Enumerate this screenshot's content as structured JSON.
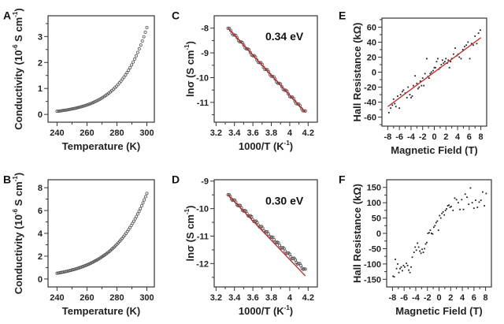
{
  "chart_data": [
    {
      "panel": "A",
      "type": "scatter",
      "xlabel": "Temperature (K)",
      "ylabel": "Conductivity (10^-6 S cm^-1)",
      "ylabel_parts": {
        "main": "Conductivity (10",
        "sup1": "-6",
        "mid": " S cm",
        "sup2": "-1",
        "end": ")"
      },
      "xlim": [
        234,
        305
      ],
      "ylim": [
        -0.3,
        3.8
      ],
      "xticks": [
        240,
        260,
        280,
        300
      ],
      "yticks": [
        0,
        1,
        2,
        3
      ],
      "marker": "open-circle",
      "curve": {
        "model": "exponential",
        "x_start": 240,
        "x_end": 300,
        "y_start": 0.12,
        "y_end": 3.35,
        "n_points": 60
      }
    },
    {
      "panel": "B",
      "type": "scatter",
      "xlabel": "Temperature (K)",
      "ylabel": "Conductivity (10^-6 S cm^-1)",
      "ylabel_parts": {
        "main": "Conductivity (10",
        "sup1": "-6",
        "mid": " S cm",
        "sup2": "-1",
        "end": ")"
      },
      "xlim": [
        234,
        305
      ],
      "ylim": [
        -0.7,
        8.7
      ],
      "xticks": [
        240,
        260,
        280,
        300
      ],
      "yticks": [
        0,
        2,
        4,
        6,
        8
      ],
      "marker": "open-circle",
      "curve": {
        "model": "exponential",
        "x_start": 240,
        "x_end": 300,
        "y_start": 0.5,
        "y_end": 7.5,
        "n_points": 70
      }
    },
    {
      "panel": "C",
      "type": "scatter",
      "xlabel": "1000/T (K^-1)",
      "ylabel": "lnσ (S cm^-1)",
      "xlim": [
        3.18,
        4.3
      ],
      "ylim": [
        -11.8,
        -7.5
      ],
      "xticks": [
        3.2,
        3.4,
        3.6,
        3.8,
        4.0,
        4.2
      ],
      "yticks": [
        -8,
        -9,
        -10,
        -11
      ],
      "annotation": "0.34 eV",
      "data_range": {
        "x_start": 3.33,
        "x_end": 4.17,
        "y_start": -8.0,
        "y_end": -11.4,
        "n_points": 60
      },
      "fit_line": {
        "x": [
          3.33,
          4.17
        ],
        "y": [
          -8.0,
          -11.4
        ],
        "color": "#cc2222"
      }
    },
    {
      "panel": "D",
      "type": "scatter",
      "xlabel": "1000/T (K^-1)",
      "ylabel": "lnσ (S cm^-1)",
      "xlim": [
        3.18,
        4.3
      ],
      "ylim": [
        -12.85,
        -8.95
      ],
      "xticks": [
        3.2,
        3.4,
        3.6,
        3.8,
        4.0,
        4.2
      ],
      "yticks": [
        -9,
        -10,
        -11,
        -12
      ],
      "annotation": "0.30 eV",
      "data_range": {
        "x_start": 3.33,
        "x_end": 4.17,
        "y_start": -9.5,
        "y_end": -12.25,
        "n_points": 70
      },
      "fit_line": {
        "x": [
          3.33,
          4.17
        ],
        "y": [
          -9.5,
          -12.45
        ],
        "color": "#cc2222"
      }
    },
    {
      "panel": "E",
      "type": "scatter",
      "xlabel": "Magnetic Field (T)",
      "ylabel": "Hall Resistance (kΩ)",
      "xlim": [
        -9,
        9
      ],
      "ylim": [
        -72,
        72
      ],
      "xticks": [
        -8,
        -6,
        -4,
        -2,
        0,
        2,
        4,
        6,
        8
      ],
      "yticks": [
        60,
        40,
        20,
        0,
        -20,
        -40,
        -60
      ],
      "fit_line": {
        "x": [
          -8,
          8
        ],
        "y": [
          -46,
          46
        ],
        "color": "#cc2222"
      },
      "x": [
        -7.8,
        -7.5,
        -7.2,
        -7.0,
        -6.8,
        -6.6,
        -6.3,
        -6.0,
        -5.8,
        -5.5,
        -5.3,
        -5.0,
        -4.7,
        -4.5,
        -4.2,
        -4.0,
        -3.8,
        -3.6,
        -3.3,
        -3.0,
        -2.8,
        -2.6,
        -2.4,
        -2.2,
        -2.0,
        -1.8,
        -1.6,
        -1.3,
        -1.1,
        -0.9,
        -0.7,
        -0.5,
        -0.2,
        0.0,
        0.2,
        0.4,
        0.6,
        0.8,
        1.0,
        1.2,
        1.4,
        1.6,
        1.8,
        2.0,
        2.2,
        2.4,
        2.6,
        2.8,
        3.0,
        3.3,
        3.6,
        3.9,
        4.1,
        4.3,
        4.6,
        4.9,
        5.2,
        5.5,
        5.8,
        6.1,
        6.4,
        6.7,
        7.0,
        7.3,
        7.6,
        7.9
      ],
      "y": [
        -54,
        -48,
        -44,
        -36,
        -42,
        -46,
        -32,
        -48,
        -30,
        -26,
        -24,
        -28,
        -34,
        -20,
        -30,
        -34,
        -32,
        -18,
        -5,
        -15,
        -22,
        -20,
        -12,
        -18,
        -8,
        -18,
        -2,
        18,
        -6,
        -8,
        -2,
        0,
        2,
        6,
        6,
        14,
        18,
        4,
        6,
        10,
        16,
        12,
        14,
        18,
        12,
        16,
        6,
        14,
        18,
        24,
        32,
        22,
        24,
        20,
        18,
        30,
        34,
        36,
        40,
        18,
        38,
        36,
        48,
        38,
        52,
        56
      ],
      "marker": "small-dot"
    },
    {
      "panel": "F",
      "type": "scatter",
      "xlabel": "Magnetic Field (T)",
      "ylabel": "Hall Resistance (kΩ)",
      "xlim": [
        -9,
        9
      ],
      "ylim": [
        -175,
        175
      ],
      "xticks": [
        -8,
        -6,
        -4,
        -2,
        0,
        2,
        4,
        6,
        8
      ],
      "yticks": [
        150,
        100,
        50,
        0,
        -50,
        -100,
        -150
      ],
      "x": [
        -7.9,
        -7.7,
        -7.5,
        -7.3,
        -7.1,
        -6.9,
        -6.7,
        -6.5,
        -6.3,
        -6.1,
        -5.9,
        -5.6,
        -5.4,
        -5.2,
        -5.0,
        -4.8,
        -4.6,
        -4.3,
        -4.1,
        -3.9,
        -3.7,
        -3.5,
        -3.3,
        -3.1,
        -2.9,
        -2.7,
        -2.5,
        -2.3,
        -2.1,
        -1.9,
        -1.7,
        -1.5,
        -1.3,
        -1.1,
        -0.9,
        -0.7,
        -0.5,
        -0.3,
        -0.1,
        0.1,
        0.3,
        0.5,
        0.7,
        0.9,
        1.1,
        1.3,
        1.5,
        1.7,
        1.9,
        2.1,
        2.4,
        2.7,
        3.0,
        3.3,
        3.6,
        3.9,
        4.2,
        4.5,
        4.8,
        5.1,
        5.4,
        5.7,
        6.0,
        6.3,
        6.6,
        6.9,
        7.2,
        7.5,
        7.8,
        8.1
      ],
      "y": [
        -140,
        -142,
        -85,
        -115,
        -100,
        -128,
        -115,
        -110,
        -122,
        -105,
        -110,
        -98,
        -105,
        -120,
        -128,
        -110,
        -78,
        -62,
        -45,
        -55,
        -32,
        -45,
        -58,
        -65,
        -52,
        -62,
        -50,
        -35,
        -30,
        0,
        2,
        10,
        0,
        -2,
        20,
        25,
        35,
        40,
        10,
        58,
        50,
        65,
        70,
        60,
        75,
        80,
        90,
        92,
        85,
        88,
        75,
        115,
        110,
        100,
        78,
        110,
        78,
        128,
        118,
        95,
        148,
        100,
        82,
        108,
        85,
        102,
        108,
        135,
        90,
        130
      ],
      "marker": "small-dot"
    }
  ],
  "panel_labels": [
    "A",
    "B",
    "C",
    "D",
    "E",
    "F"
  ]
}
